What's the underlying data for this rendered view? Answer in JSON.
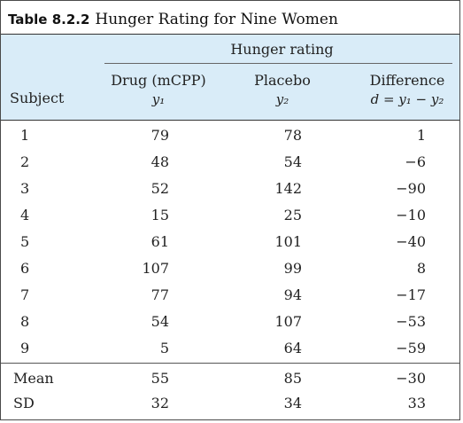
{
  "table": {
    "title_label": "Table 8.2.2",
    "title_text": "Hunger Rating for Nine Women",
    "group_header": "Hunger rating",
    "columns": {
      "subject": "Subject",
      "drug": "Drug (mCPP)",
      "drug_sub": "y₁",
      "placebo": "Placebo",
      "placebo_sub": "y₂",
      "difference": "Difference",
      "difference_sub": "d = y₁ − y₂"
    },
    "rows": [
      {
        "subject": "1",
        "drug": "79",
        "placebo": "78",
        "difference": "1"
      },
      {
        "subject": "2",
        "drug": "48",
        "placebo": "54",
        "difference": "−6"
      },
      {
        "subject": "3",
        "drug": "52",
        "placebo": "142",
        "difference": "−90"
      },
      {
        "subject": "4",
        "drug": "15",
        "placebo": "25",
        "difference": "−10"
      },
      {
        "subject": "5",
        "drug": "61",
        "placebo": "101",
        "difference": "−40"
      },
      {
        "subject": "6",
        "drug": "107",
        "placebo": "99",
        "difference": "8"
      },
      {
        "subject": "7",
        "drug": "77",
        "placebo": "94",
        "difference": "−17"
      },
      {
        "subject": "8",
        "drug": "54",
        "placebo": "107",
        "difference": "−53"
      },
      {
        "subject": "9",
        "drug": "5",
        "placebo": "64",
        "difference": "−59"
      }
    ],
    "summary": [
      {
        "label": "Mean",
        "drug": "55",
        "placebo": "85",
        "difference": "−30"
      },
      {
        "label": "SD",
        "drug": "32",
        "placebo": "34",
        "difference": "33"
      }
    ]
  }
}
